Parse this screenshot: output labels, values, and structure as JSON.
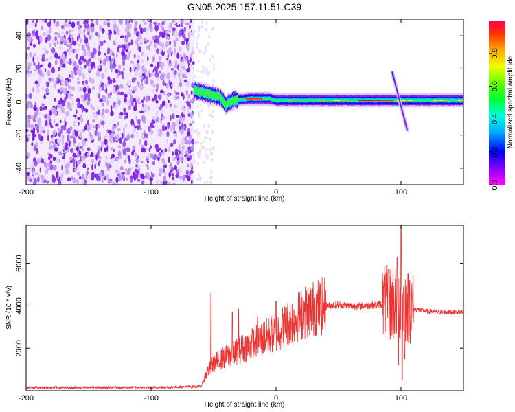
{
  "title": "GN05.2025.157.11.51.C39",
  "chart_data": [
    {
      "type": "heatmap",
      "xlabel": "Height of straight line (km)",
      "ylabel": "Frequency (Hz)",
      "xlim": [
        -200,
        150
      ],
      "ylim": [
        -50,
        50
      ],
      "x_ticks": [
        "-200",
        "-100",
        "0",
        "100"
      ],
      "y_ticks": [
        "-40",
        "-20",
        "0",
        "20",
        "40"
      ],
      "colorbar": {
        "label": "Normalized spectral amplitude",
        "range": [
          0,
          1
        ],
        "ticks": [
          "0.0",
          "0.2",
          "0.4",
          "0.6",
          "0.8"
        ]
      },
      "noise_region_x": [
        -200,
        -66
      ],
      "main_signal": {
        "x_range": [
          -66,
          150
        ],
        "center_freq": [
          [
            -66,
            7
          ],
          [
            -55,
            5
          ],
          [
            -45,
            3
          ],
          [
            -40,
            -2
          ],
          [
            -35,
            1
          ],
          [
            -20,
            2
          ],
          [
            -5,
            2
          ],
          [
            0,
            1
          ],
          [
            40,
            1
          ],
          [
            100,
            1
          ],
          [
            150,
            1
          ]
        ],
        "peak_amplitude_x": [
          -20,
          80
        ]
      },
      "chirp_feature": {
        "x": [
          93,
          105
        ],
        "freq": [
          18,
          -17
        ]
      }
    },
    {
      "type": "line",
      "xlabel": "Height of straight line (km)",
      "ylabel": "SNR (10 * v/v)",
      "xlim": [
        -200,
        150
      ],
      "ylim": [
        0,
        7800
      ],
      "x_ticks": [
        "-200",
        "-100",
        "0",
        "100"
      ],
      "y_ticks": [
        "2000",
        "4000",
        "6000"
      ],
      "series": [
        {
          "color": "#ee3333",
          "envelope": [
            [
              -200,
              150
            ],
            [
              -100,
              150
            ],
            [
              -60,
              200
            ],
            [
              -55,
              900
            ],
            [
              -50,
              1300
            ],
            [
              -40,
              1600
            ],
            [
              -30,
              1900
            ],
            [
              -20,
              2200
            ],
            [
              -10,
              2500
            ],
            [
              0,
              2750
            ],
            [
              10,
              3200
            ],
            [
              20,
              3600
            ],
            [
              30,
              3900
            ],
            [
              40,
              4000
            ],
            [
              50,
              4050
            ],
            [
              60,
              4000
            ],
            [
              70,
              4000
            ],
            [
              80,
              4050
            ],
            [
              90,
              4100
            ],
            [
              100,
              4100
            ],
            [
              110,
              3850
            ],
            [
              120,
              3750
            ],
            [
              130,
              3700
            ],
            [
              150,
              3700
            ]
          ],
          "spikes": [
            [
              -52,
              4600
            ],
            [
              -35,
              3700
            ],
            [
              -30,
              3850
            ],
            [
              -15,
              3500
            ],
            [
              0,
              4200
            ],
            [
              90,
              5700
            ],
            [
              97,
              6300
            ],
            [
              100,
              7800
            ],
            [
              103,
              5800
            ],
            [
              107,
              5200
            ]
          ],
          "dips": [
            [
              98,
              1200
            ],
            [
              101,
              500
            ],
            [
              103,
              1500
            ]
          ]
        }
      ]
    }
  ]
}
